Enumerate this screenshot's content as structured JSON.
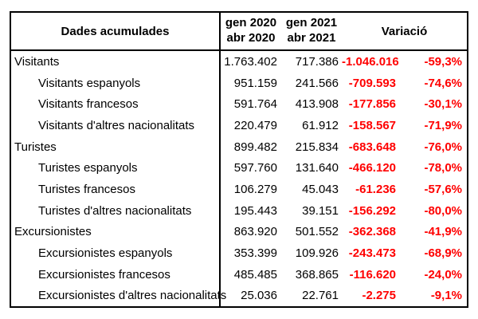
{
  "table": {
    "header": {
      "label": "Dades acumulades",
      "period1_line1": "gen 2020",
      "period1_line2": "abr 2020",
      "period2_line1": "gen 2021",
      "period2_line2": "abr 2021",
      "variation": "Variació"
    },
    "rows": [
      {
        "label": "Visitants",
        "indent": false,
        "v2020": "1.763.402",
        "v2021": "717.386",
        "diff": "-1.046.016",
        "pct": "-59,3%"
      },
      {
        "label": "Visitants espanyols",
        "indent": true,
        "v2020": "951.159",
        "v2021": "241.566",
        "diff": "-709.593",
        "pct": "-74,6%"
      },
      {
        "label": "Visitants francesos",
        "indent": true,
        "v2020": "591.764",
        "v2021": "413.908",
        "diff": "-177.856",
        "pct": "-30,1%"
      },
      {
        "label": "Visitants d'altres nacionalitats",
        "indent": true,
        "v2020": "220.479",
        "v2021": "61.912",
        "diff": "-158.567",
        "pct": "-71,9%"
      },
      {
        "label": "Turistes",
        "indent": false,
        "v2020": "899.482",
        "v2021": "215.834",
        "diff": "-683.648",
        "pct": "-76,0%"
      },
      {
        "label": "Turistes espanyols",
        "indent": true,
        "v2020": "597.760",
        "v2021": "131.640",
        "diff": "-466.120",
        "pct": "-78,0%"
      },
      {
        "label": "Turistes francesos",
        "indent": true,
        "v2020": "106.279",
        "v2021": "45.043",
        "diff": "-61.236",
        "pct": "-57,6%"
      },
      {
        "label": "Turistes d'altres nacionalitats",
        "indent": true,
        "v2020": "195.443",
        "v2021": "39.151",
        "diff": "-156.292",
        "pct": "-80,0%"
      },
      {
        "label": "Excursionistes",
        "indent": false,
        "v2020": "863.920",
        "v2021": "501.552",
        "diff": "-362.368",
        "pct": "-41,9%"
      },
      {
        "label": "Excursionistes espanyols",
        "indent": true,
        "v2020": "353.399",
        "v2021": "109.926",
        "diff": "-243.473",
        "pct": "-68,9%"
      },
      {
        "label": "Excursionistes francesos",
        "indent": true,
        "v2020": "485.485",
        "v2021": "368.865",
        "diff": "-116.620",
        "pct": "-24,0%"
      },
      {
        "label": "Excursionistes d'altres nacionalitats",
        "indent": true,
        "v2020": "25.036",
        "v2021": "22.761",
        "diff": "-2.275",
        "pct": "-9,1%"
      }
    ]
  },
  "colors": {
    "negative_value": "#ff0000",
    "text": "#000000",
    "border": "#000000",
    "background": "#ffffff"
  },
  "chart_data": {
    "type": "table",
    "title": "Dades acumulades",
    "columns": [
      "Dades acumulades",
      "gen 2020 abr 2020",
      "gen 2021 abr 2021",
      "Variació (absoluta)",
      "Variació (%)"
    ],
    "rows": [
      [
        "Visitants",
        "1.763.402",
        "717.386",
        "-1.046.016",
        "-59,3%"
      ],
      [
        "Visitants espanyols",
        "951.159",
        "241.566",
        "-709.593",
        "-74,6%"
      ],
      [
        "Visitants francesos",
        "591.764",
        "413.908",
        "-177.856",
        "-30,1%"
      ],
      [
        "Visitants d'altres nacionalitats",
        "220.479",
        "61.912",
        "-158.567",
        "-71,9%"
      ],
      [
        "Turistes",
        "899.482",
        "215.834",
        "-683.648",
        "-76,0%"
      ],
      [
        "Turistes espanyols",
        "597.760",
        "131.640",
        "-466.120",
        "-78,0%"
      ],
      [
        "Turistes francesos",
        "106.279",
        "45.043",
        "-61.236",
        "-57,6%"
      ],
      [
        "Turistes d'altres nacionalitats",
        "195.443",
        "39.151",
        "-156.292",
        "-80,0%"
      ],
      [
        "Excursionistes",
        "863.920",
        "501.552",
        "-362.368",
        "-41,9%"
      ],
      [
        "Excursionistes espanyols",
        "353.399",
        "109.926",
        "-243.473",
        "-68,9%"
      ],
      [
        "Excursionistes francesos",
        "485.485",
        "368.865",
        "-116.620",
        "-24,0%"
      ],
      [
        "Excursionistes d'altres nacionalitats",
        "25.036",
        "22.761",
        "-2.275",
        "-9,1%"
      ]
    ]
  }
}
